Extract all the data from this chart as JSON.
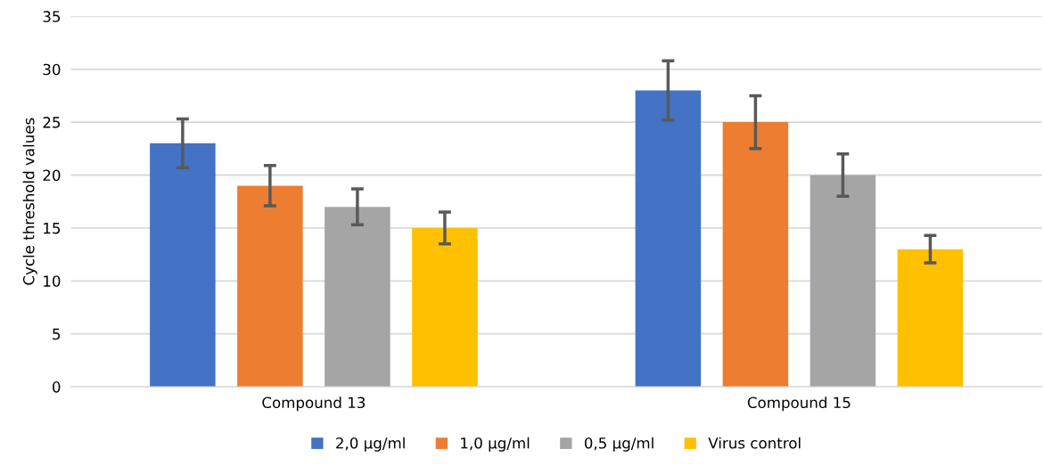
{
  "chart_data": {
    "type": "bar",
    "ylabel": "Cycle threshold values",
    "categories": [
      "Compound 13",
      "Compound 15"
    ],
    "series": [
      {
        "name": "2,0 µg/ml",
        "color": "#4472c4",
        "values": [
          23,
          28
        ],
        "errors": [
          2.3,
          2.8
        ]
      },
      {
        "name": "1,0 µg/ml",
        "color": "#ed7d31",
        "values": [
          19,
          25
        ],
        "errors": [
          1.9,
          2.5
        ]
      },
      {
        "name": "0,5 µg/ml",
        "color": "#a5a5a5",
        "values": [
          17,
          20
        ],
        "errors": [
          1.7,
          2
        ]
      },
      {
        "name": "Virus control",
        "color": "#ffc000",
        "values": [
          15,
          13
        ],
        "errors": [
          1.5,
          1.3
        ]
      }
    ],
    "ylim": [
      0,
      35
    ],
    "yticks": [
      0,
      5,
      10,
      15,
      20,
      25,
      30,
      35
    ],
    "grid": "y",
    "legend": "bottom"
  }
}
